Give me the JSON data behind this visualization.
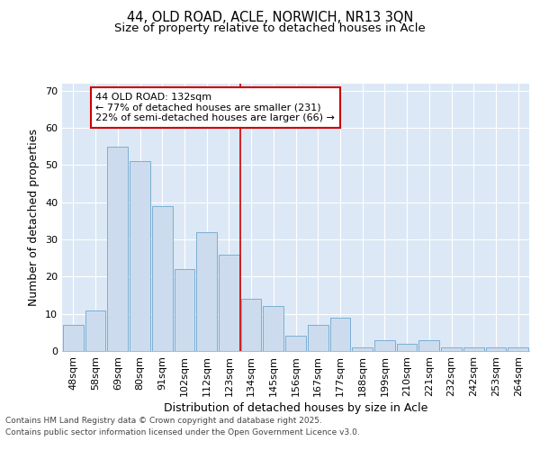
{
  "title_line1": "44, OLD ROAD, ACLE, NORWICH, NR13 3QN",
  "title_line2": "Size of property relative to detached houses in Acle",
  "xlabel": "Distribution of detached houses by size in Acle",
  "ylabel": "Number of detached properties",
  "categories": [
    "48sqm",
    "58sqm",
    "69sqm",
    "80sqm",
    "91sqm",
    "102sqm",
    "112sqm",
    "123sqm",
    "134sqm",
    "145sqm",
    "156sqm",
    "167sqm",
    "177sqm",
    "188sqm",
    "199sqm",
    "210sqm",
    "221sqm",
    "232sqm",
    "242sqm",
    "253sqm",
    "264sqm"
  ],
  "values": [
    7,
    11,
    55,
    51,
    39,
    22,
    32,
    26,
    14,
    12,
    4,
    7,
    9,
    1,
    3,
    2,
    3,
    1,
    1,
    1,
    1
  ],
  "bar_color": "#ccdcee",
  "bar_edge_color": "#7aafd4",
  "highlight_line_color": "#cc0000",
  "annotation_line1": "44 OLD ROAD: 132sqm",
  "annotation_line2": "← 77% of detached houses are smaller (231)",
  "annotation_line3": "22% of semi-detached houses are larger (66) →",
  "annotation_box_color": "#cc0000",
  "ylim": [
    0,
    72
  ],
  "yticks": [
    0,
    10,
    20,
    30,
    40,
    50,
    60,
    70
  ],
  "background_color": "#dce8f5",
  "grid_color": "#ffffff",
  "footer_line1": "Contains HM Land Registry data © Crown copyright and database right 2025.",
  "footer_line2": "Contains public sector information licensed under the Open Government Licence v3.0.",
  "title_fontsize": 10.5,
  "subtitle_fontsize": 9.5,
  "axis_label_fontsize": 9,
  "tick_fontsize": 8,
  "annotation_fontsize": 8,
  "footer_fontsize": 6.5
}
